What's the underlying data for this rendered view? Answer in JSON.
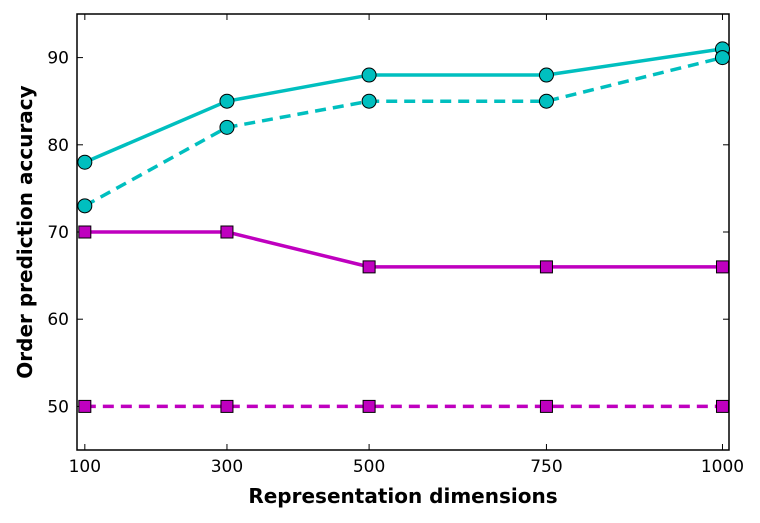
{
  "chart_data": {
    "type": "line",
    "title": "",
    "xlabel": "Representation dimensions",
    "ylabel": "Order prediction accuracy",
    "x": [
      100,
      300,
      500,
      750,
      1000
    ],
    "x_tick_labels": [
      "100",
      "300",
      "500",
      "750",
      "1000"
    ],
    "y_ticks": [
      50,
      60,
      70,
      80,
      90
    ],
    "ylim": [
      45,
      95
    ],
    "grid": false,
    "series": [
      {
        "values": [
          78,
          85,
          88,
          88,
          91
        ],
        "color": "#00bfbf",
        "linestyle": "solid",
        "marker": "circle"
      },
      {
        "values": [
          73,
          82,
          85,
          85,
          90
        ],
        "color": "#00bfbf",
        "linestyle": "dashed",
        "marker": "circle"
      },
      {
        "values": [
          70,
          70,
          66,
          66,
          66
        ],
        "color": "#bf00bf",
        "linestyle": "solid",
        "marker": "square"
      },
      {
        "values": [
          50,
          50,
          50,
          50,
          50
        ],
        "color": "#bf00bf",
        "linestyle": "dashed",
        "marker": "square"
      }
    ]
  }
}
